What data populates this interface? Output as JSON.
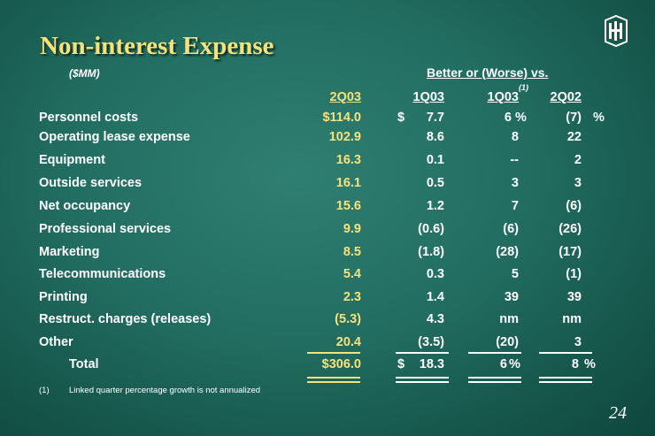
{
  "title": "Non-interest Expense",
  "units": "($MM)",
  "compare_header": "Better or (Worse) vs.",
  "columns": {
    "c1": "2Q03",
    "c2": "1Q03",
    "c3": "1Q03",
    "c3_sup": "(1)",
    "c4": "2Q02"
  },
  "pct_symbol": "%",
  "dollar_symbol": "$",
  "rows": [
    {
      "label": "Personnel costs",
      "v2q03": "$114.0",
      "v1q03": "7.7",
      "v1q03p": "6",
      "v2q02": "(7)"
    },
    {
      "label": "Operating lease expense",
      "v2q03": "102.9",
      "v1q03": "8.6",
      "v1q03p": "8",
      "v2q02": "22"
    },
    {
      "label": "Equipment",
      "v2q03": "16.3",
      "v1q03": "0.1",
      "v1q03p": "--",
      "v2q02": "2"
    },
    {
      "label": "Outside services",
      "v2q03": "16.1",
      "v1q03": "0.5",
      "v1q03p": "3",
      "v2q02": "3"
    },
    {
      "label": "Net occupancy",
      "v2q03": "15.6",
      "v1q03": "1.2",
      "v1q03p": "7",
      "v2q02": "(6)"
    },
    {
      "label": "Professional services",
      "v2q03": "9.9",
      "v1q03": "(0.6)",
      "v1q03p": "(6)",
      "v2q02": "(26)"
    },
    {
      "label": "Marketing",
      "v2q03": "8.5",
      "v1q03": "(1.8)",
      "v1q03p": "(28)",
      "v2q02": "(17)"
    },
    {
      "label": "Telecommunications",
      "v2q03": "5.4",
      "v1q03": "0.3",
      "v1q03p": "5",
      "v2q02": "(1)"
    },
    {
      "label": "Printing",
      "v2q03": "2.3",
      "v1q03": "1.4",
      "v1q03p": "39",
      "v2q02": "39"
    },
    {
      "label": "Restruct. charges (releases)",
      "v2q03": "(5.3)",
      "v1q03": "4.3",
      "v1q03p": "nm",
      "v2q02": "nm"
    },
    {
      "label": "Other",
      "v2q03": "20.4",
      "v1q03": "(3.5)",
      "v1q03p": "(20)",
      "v2q02": "3"
    }
  ],
  "total": {
    "label": "Total",
    "v2q03": "$306.0",
    "v1q03": "18.3",
    "v1q03p": "6",
    "v2q02": "8"
  },
  "footnote": {
    "mark": "(1)",
    "text": "Linked quarter percentage growth is not annualized"
  },
  "page_number": "24",
  "colors": {
    "accent": "#f6e27a",
    "background": "#226d61",
    "text": "#ffffff"
  }
}
